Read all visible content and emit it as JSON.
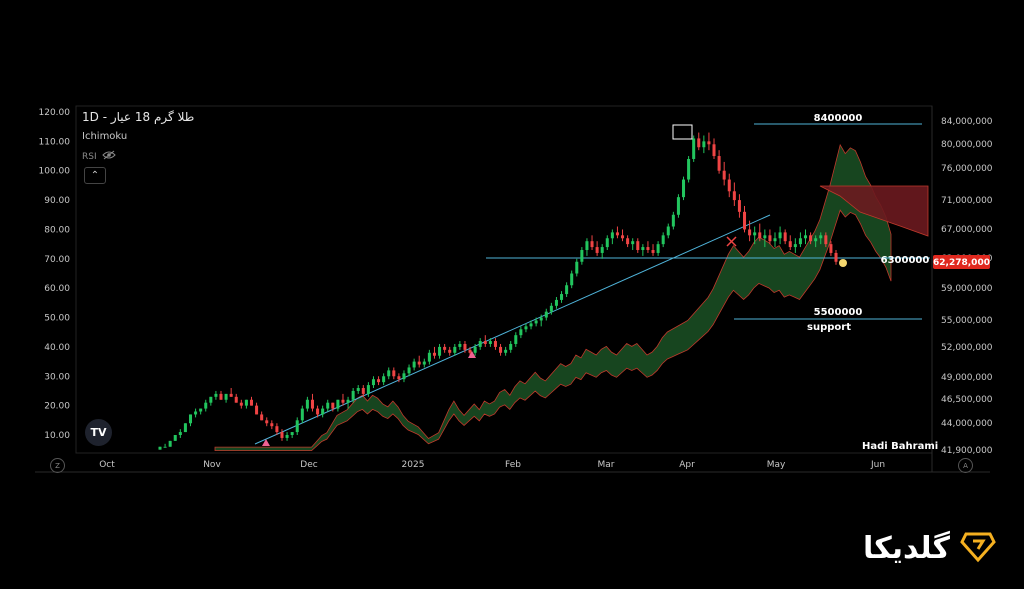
{
  "header": {
    "title": "طلا گرم 18 عیار - 1D",
    "indicator": "Ichimoku",
    "rsi_label": "RSI"
  },
  "author": "Hadi Bahrami",
  "brand": {
    "name": "گلدیکا",
    "logo_color": "#f5b020"
  },
  "corner_buttons": {
    "left": "Z",
    "right": "A"
  },
  "tv_logo": "TV",
  "chart_data": {
    "type": "candlestick",
    "interval": "1D",
    "colors": {
      "up": "#22c55e",
      "down": "#ef4444",
      "kumo_bull": "#1f5c2a",
      "kumo_bear": "#6b1a1f",
      "trendline": "#4fb3d9",
      "last_price_bg": "#e0281e"
    },
    "left_axis": {
      "ticks": [
        "120.00",
        "110.00",
        "100.00",
        "90.00",
        "80.00",
        "70.00",
        "60.00",
        "50.00",
        "40.00",
        "30.00",
        "20.00",
        "10.00"
      ]
    },
    "right_axis": {
      "ticks": [
        "84,000,000",
        "80,000,000",
        "76,000,000",
        "71,000,000",
        "67,000,000",
        "63,000,000",
        "59,000,000",
        "55,000,000",
        "52,000,000",
        "49,000,000",
        "46,500,000",
        "44,000,000",
        "41,900,000"
      ]
    },
    "x_axis": {
      "labels": [
        "Oct",
        "Nov",
        "Dec",
        "2025",
        "Feb",
        "Mar",
        "Apr",
        "May",
        "Jun"
      ]
    },
    "last_price": "62,278,000",
    "levels": [
      {
        "label": "8400000",
        "sublabel": ""
      },
      {
        "label": "6300000",
        "sublabel": ""
      },
      {
        "label": "5500000",
        "sublabel": "support"
      }
    ],
    "candles": [
      [
        5,
        6,
        5,
        6
      ],
      [
        6,
        7,
        6,
        6
      ],
      [
        6,
        8,
        6,
        8
      ],
      [
        8,
        10,
        8,
        10
      ],
      [
        10,
        12,
        9,
        11
      ],
      [
        11,
        14,
        11,
        14
      ],
      [
        14,
        17,
        13,
        17
      ],
      [
        17,
        19,
        16,
        18
      ],
      [
        18,
        19,
        17,
        19
      ],
      [
        19,
        22,
        18,
        21
      ],
      [
        21,
        23,
        20,
        23
      ],
      [
        23,
        25,
        22,
        24
      ],
      [
        24,
        25,
        22,
        22
      ],
      [
        22,
        24,
        21,
        24
      ],
      [
        24,
        26,
        23,
        23
      ],
      [
        23,
        24,
        21,
        21
      ],
      [
        21,
        22,
        19,
        20
      ],
      [
        20,
        22,
        19,
        22
      ],
      [
        22,
        23,
        20,
        20
      ],
      [
        20,
        21,
        17,
        17
      ],
      [
        17,
        18,
        15,
        15
      ],
      [
        15,
        16,
        13,
        14
      ],
      [
        14,
        15,
        12,
        13
      ],
      [
        13,
        14,
        10,
        11
      ],
      [
        11,
        12,
        8,
        9
      ],
      [
        9,
        11,
        8,
        10
      ],
      [
        10,
        11,
        9,
        11
      ],
      [
        11,
        16,
        10,
        15
      ],
      [
        15,
        20,
        14,
        19
      ],
      [
        19,
        23,
        18,
        22
      ],
      [
        22,
        24,
        18,
        19
      ],
      [
        19,
        20,
        16,
        17
      ],
      [
        17,
        20,
        16,
        19
      ],
      [
        19,
        22,
        18,
        21
      ],
      [
        21,
        21,
        18,
        19
      ],
      [
        19,
        22,
        18,
        22
      ],
      [
        22,
        24,
        20,
        21
      ],
      [
        21,
        23,
        19,
        22
      ],
      [
        22,
        26,
        21,
        25
      ],
      [
        25,
        27,
        24,
        26
      ],
      [
        26,
        27,
        23,
        24
      ],
      [
        24,
        28,
        23,
        27
      ],
      [
        27,
        30,
        26,
        29
      ],
      [
        29,
        30,
        27,
        28
      ],
      [
        28,
        31,
        27,
        30
      ],
      [
        30,
        33,
        29,
        32
      ],
      [
        32,
        33,
        29,
        30
      ],
      [
        30,
        31,
        28,
        29
      ],
      [
        29,
        32,
        28,
        31
      ],
      [
        31,
        34,
        30,
        33
      ],
      [
        33,
        36,
        32,
        35
      ],
      [
        35,
        37,
        33,
        34
      ],
      [
        34,
        36,
        33,
        35
      ],
      [
        35,
        39,
        34,
        38
      ],
      [
        38,
        40,
        36,
        37
      ],
      [
        37,
        41,
        36,
        40
      ],
      [
        40,
        41,
        38,
        39
      ],
      [
        39,
        40,
        37,
        38
      ],
      [
        38,
        41,
        37,
        40
      ],
      [
        40,
        42,
        39,
        41
      ],
      [
        41,
        42,
        38,
        39
      ],
      [
        39,
        40,
        37,
        38
      ],
      [
        38,
        41,
        37,
        40
      ],
      [
        40,
        43,
        39,
        42
      ],
      [
        42,
        44,
        40,
        41
      ],
      [
        41,
        43,
        40,
        42
      ],
      [
        42,
        43,
        39,
        40
      ],
      [
        40,
        41,
        37,
        38
      ],
      [
        38,
        40,
        37,
        39
      ],
      [
        39,
        42,
        38,
        41
      ],
      [
        41,
        45,
        40,
        44
      ],
      [
        44,
        47,
        43,
        46
      ],
      [
        46,
        48,
        45,
        47
      ],
      [
        47,
        49,
        46,
        48
      ],
      [
        48,
        50,
        47,
        49
      ],
      [
        49,
        51,
        47,
        50
      ],
      [
        50,
        53,
        49,
        52
      ],
      [
        52,
        55,
        51,
        54
      ],
      [
        54,
        57,
        53,
        56
      ],
      [
        56,
        59,
        55,
        58
      ],
      [
        58,
        62,
        57,
        61
      ],
      [
        61,
        66,
        60,
        65
      ],
      [
        65,
        70,
        64,
        69
      ],
      [
        69,
        74,
        68,
        73
      ],
      [
        73,
        77,
        71,
        76
      ],
      [
        76,
        78,
        73,
        74
      ],
      [
        74,
        76,
        71,
        72
      ],
      [
        72,
        75,
        70,
        74
      ],
      [
        74,
        78,
        73,
        77
      ],
      [
        77,
        80,
        75,
        79
      ],
      [
        79,
        81,
        77,
        78
      ],
      [
        78,
        80,
        76,
        77
      ],
      [
        77,
        78,
        74,
        75
      ],
      [
        75,
        77,
        73,
        76
      ],
      [
        76,
        77,
        72,
        73
      ],
      [
        73,
        75,
        71,
        74
      ],
      [
        74,
        76,
        72,
        73
      ],
      [
        73,
        75,
        71,
        72
      ],
      [
        72,
        76,
        71,
        75
      ],
      [
        75,
        79,
        74,
        78
      ],
      [
        78,
        82,
        77,
        81
      ],
      [
        81,
        86,
        80,
        85
      ],
      [
        85,
        92,
        84,
        91
      ],
      [
        91,
        98,
        90,
        97
      ],
      [
        97,
        105,
        96,
        104
      ],
      [
        104,
        112,
        103,
        111
      ],
      [
        111,
        113,
        107,
        108
      ],
      [
        108,
        112,
        106,
        110
      ],
      [
        110,
        113,
        107,
        109
      ],
      [
        109,
        111,
        104,
        105
      ],
      [
        105,
        107,
        99,
        100
      ],
      [
        100,
        103,
        95,
        97
      ],
      [
        97,
        99,
        91,
        93
      ],
      [
        93,
        96,
        88,
        90
      ],
      [
        90,
        92,
        84,
        86
      ],
      [
        86,
        88,
        79,
        80
      ],
      [
        80,
        83,
        76,
        78
      ],
      [
        78,
        81,
        75,
        79
      ],
      [
        79,
        82,
        76,
        77
      ],
      [
        77,
        80,
        74,
        78
      ],
      [
        78,
        80,
        75,
        76
      ],
      [
        76,
        79,
        74,
        77
      ],
      [
        77,
        81,
        75,
        79
      ],
      [
        79,
        80,
        75,
        76
      ],
      [
        76,
        78,
        73,
        74
      ],
      [
        74,
        77,
        72,
        75
      ],
      [
        75,
        79,
        74,
        77
      ],
      [
        77,
        80,
        75,
        78
      ],
      [
        78,
        79,
        75,
        76
      ],
      [
        76,
        78,
        74,
        77
      ],
      [
        77,
        79,
        75,
        78
      ],
      [
        78,
        79,
        74,
        75
      ],
      [
        75,
        76,
        71,
        72
      ],
      [
        72,
        73,
        68,
        69
      ]
    ]
  }
}
